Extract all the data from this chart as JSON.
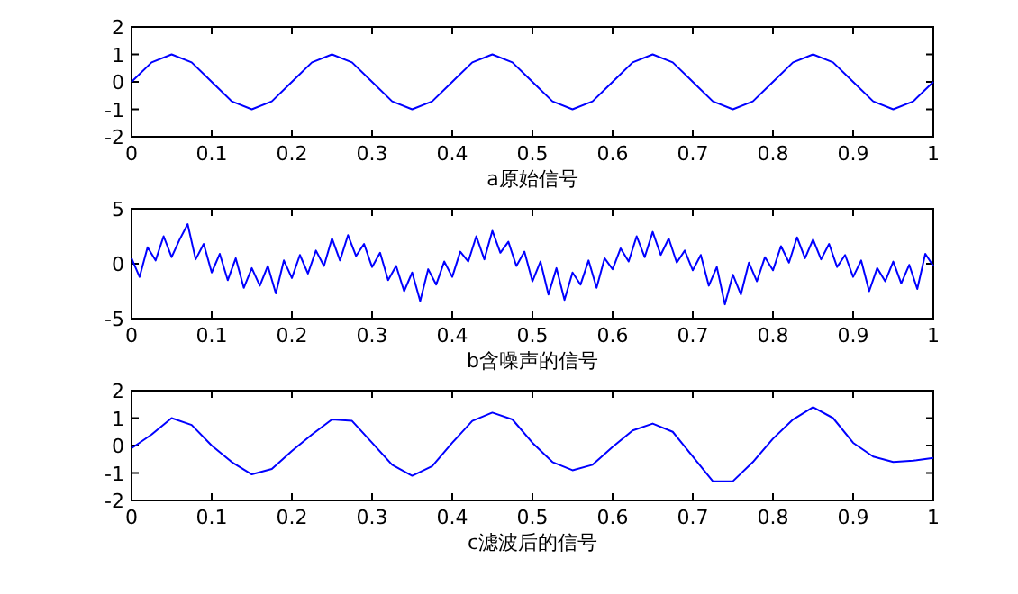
{
  "chart_data": [
    {
      "type": "line",
      "xlabel": "a原始信号",
      "x": [
        0,
        0.025,
        0.05,
        0.075,
        0.1,
        0.125,
        0.15,
        0.175,
        0.2,
        0.225,
        0.25,
        0.275,
        0.3,
        0.325,
        0.35,
        0.375,
        0.4,
        0.425,
        0.45,
        0.475,
        0.5,
        0.525,
        0.55,
        0.575,
        0.6,
        0.625,
        0.65,
        0.675,
        0.7,
        0.725,
        0.75,
        0.775,
        0.8,
        0.825,
        0.85,
        0.875,
        0.9,
        0.925,
        0.95,
        0.975,
        1
      ],
      "xlim": [
        0,
        1
      ],
      "ylim": [
        -2,
        2
      ],
      "xticks": [
        0,
        0.1,
        0.2,
        0.3,
        0.4,
        0.5,
        0.6,
        0.7,
        0.8,
        0.9,
        1
      ],
      "yticks": [
        -2,
        -1,
        0,
        1,
        2
      ],
      "series": [
        {
          "color": "#0000ff",
          "values": [
            0,
            0.71,
            1,
            0.71,
            0,
            -0.71,
            -1,
            -0.71,
            0,
            0.71,
            1,
            0.71,
            0,
            -0.71,
            -1,
            -0.71,
            0,
            0.71,
            1,
            0.71,
            0,
            -0.71,
            -1,
            -0.71,
            0,
            0.71,
            1,
            0.71,
            0,
            -0.71,
            -1,
            -0.71,
            0,
            0.71,
            1,
            0.71,
            0,
            -0.71,
            -1,
            -0.71,
            0
          ]
        }
      ]
    },
    {
      "type": "line",
      "xlabel": "b含噪声的信号",
      "x": [
        0,
        0.01,
        0.02,
        0.03,
        0.04,
        0.05,
        0.06,
        0.07,
        0.08,
        0.09,
        0.1,
        0.11,
        0.12,
        0.13,
        0.14,
        0.15,
        0.16,
        0.17,
        0.18,
        0.19,
        0.2,
        0.21,
        0.22,
        0.23,
        0.24,
        0.25,
        0.26,
        0.27,
        0.28,
        0.29,
        0.3,
        0.31,
        0.32,
        0.33,
        0.34,
        0.35,
        0.36,
        0.37,
        0.38,
        0.39,
        0.4,
        0.41,
        0.42,
        0.43,
        0.44,
        0.45,
        0.46,
        0.47,
        0.48,
        0.49,
        0.5,
        0.51,
        0.52,
        0.53,
        0.54,
        0.55,
        0.56,
        0.57,
        0.58,
        0.59,
        0.6,
        0.61,
        0.62,
        0.63,
        0.64,
        0.65,
        0.66,
        0.67,
        0.68,
        0.69,
        0.7,
        0.71,
        0.72,
        0.73,
        0.74,
        0.75,
        0.76,
        0.77,
        0.78,
        0.79,
        0.8,
        0.81,
        0.82,
        0.83,
        0.84,
        0.85,
        0.86,
        0.87,
        0.88,
        0.89,
        0.9,
        0.91,
        0.92,
        0.93,
        0.94,
        0.95,
        0.96,
        0.97,
        0.98,
        0.99,
        1
      ],
      "xlim": [
        0,
        1
      ],
      "ylim": [
        -5,
        5
      ],
      "xticks": [
        0,
        0.1,
        0.2,
        0.3,
        0.4,
        0.5,
        0.6,
        0.7,
        0.8,
        0.9,
        1
      ],
      "yticks": [
        -5,
        0,
        5
      ],
      "series": [
        {
          "color": "#0000ff",
          "values": [
            0.5,
            -1.2,
            1.5,
            0.3,
            2.5,
            0.6,
            2.2,
            3.6,
            0.4,
            1.8,
            -0.8,
            0.9,
            -1.5,
            0.5,
            -2.2,
            -0.4,
            -2,
            -0.2,
            -2.7,
            0.3,
            -1.3,
            0.8,
            -0.9,
            1.2,
            -0.2,
            2.3,
            0.3,
            2.6,
            0.7,
            1.8,
            -0.3,
            1,
            -1.5,
            -0.2,
            -2.5,
            -0.8,
            -3.4,
            -0.5,
            -1.9,
            0.2,
            -1.2,
            1.1,
            0.2,
            2.5,
            0.4,
            3,
            1,
            2,
            -0.2,
            1.1,
            -1.6,
            0.2,
            -2.8,
            -0.4,
            -3.3,
            -0.8,
            -1.9,
            0.3,
            -2.2,
            0.5,
            -0.5,
            1.4,
            0.2,
            2.5,
            0.6,
            2.9,
            0.8,
            2.3,
            0.1,
            1.2,
            -0.6,
            0.8,
            -2,
            -0.3,
            -3.7,
            -1,
            -2.8,
            0.1,
            -1.6,
            0.6,
            -0.6,
            1.6,
            0.1,
            2.4,
            0.5,
            2.2,
            0.4,
            1.8,
            -0.3,
            0.8,
            -1.2,
            0.3,
            -2.5,
            -0.4,
            -1.6,
            0.2,
            -1.8,
            -0.1,
            -2.3,
            0.9,
            -0.2
          ]
        }
      ]
    },
    {
      "type": "line",
      "xlabel": "c滤波后的信号",
      "x": [
        0,
        0.025,
        0.05,
        0.075,
        0.1,
        0.125,
        0.15,
        0.175,
        0.2,
        0.225,
        0.25,
        0.275,
        0.3,
        0.325,
        0.35,
        0.375,
        0.4,
        0.425,
        0.45,
        0.475,
        0.5,
        0.525,
        0.55,
        0.575,
        0.6,
        0.625,
        0.65,
        0.675,
        0.7,
        0.725,
        0.75,
        0.775,
        0.8,
        0.825,
        0.85,
        0.875,
        0.9,
        0.925,
        0.95,
        0.975,
        1
      ],
      "xlim": [
        0,
        1
      ],
      "ylim": [
        -2,
        2
      ],
      "xticks": [
        0,
        0.1,
        0.2,
        0.3,
        0.4,
        0.5,
        0.6,
        0.7,
        0.8,
        0.9,
        1
      ],
      "yticks": [
        -2,
        -1,
        0,
        1,
        2
      ],
      "series": [
        {
          "color": "#0000ff",
          "values": [
            -0.1,
            0.4,
            1,
            0.75,
            0,
            -0.6,
            -1.05,
            -0.85,
            -0.2,
            0.4,
            0.95,
            0.9,
            0.1,
            -0.7,
            -1.1,
            -0.75,
            0.1,
            0.9,
            1.2,
            0.95,
            0.1,
            -0.6,
            -0.9,
            -0.7,
            -0.05,
            0.55,
            0.8,
            0.5,
            -0.4,
            -1.3,
            -1.3,
            -0.6,
            0.25,
            0.95,
            1.4,
            1,
            0.1,
            -0.4,
            -0.6,
            -0.55,
            -0.45
          ]
        }
      ]
    }
  ]
}
